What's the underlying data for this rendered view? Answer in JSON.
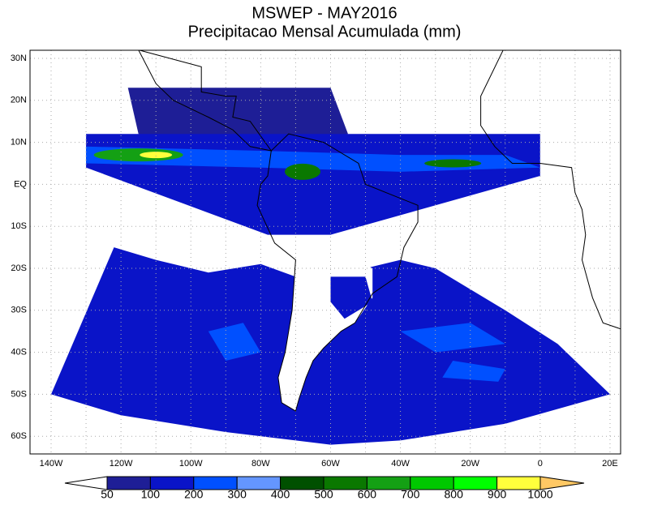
{
  "title": "MSWEP - MAY2016",
  "subtitle": "Precipitacao Mensal Acumulada (mm)",
  "lat_labels": [
    "30N",
    "20N",
    "10N",
    "EQ",
    "10S",
    "20S",
    "30S",
    "40S",
    "50S",
    "60S"
  ],
  "lon_labels": [
    "140W",
    "120W",
    "100W",
    "80W",
    "60W",
    "40W",
    "20W",
    "0",
    "20E"
  ],
  "colorbar": {
    "labels": [
      50,
      100,
      200,
      300,
      400,
      500,
      600,
      700,
      800,
      900,
      1000
    ],
    "colors": [
      "#ffffff",
      "#1e1e96",
      "#0a14c8",
      "#0050ff",
      "#6496ff",
      "#005000",
      "#0a7800",
      "#14a014",
      "#00c800",
      "#00ff00",
      "#ffff3c",
      "#ffc864"
    ]
  }
}
